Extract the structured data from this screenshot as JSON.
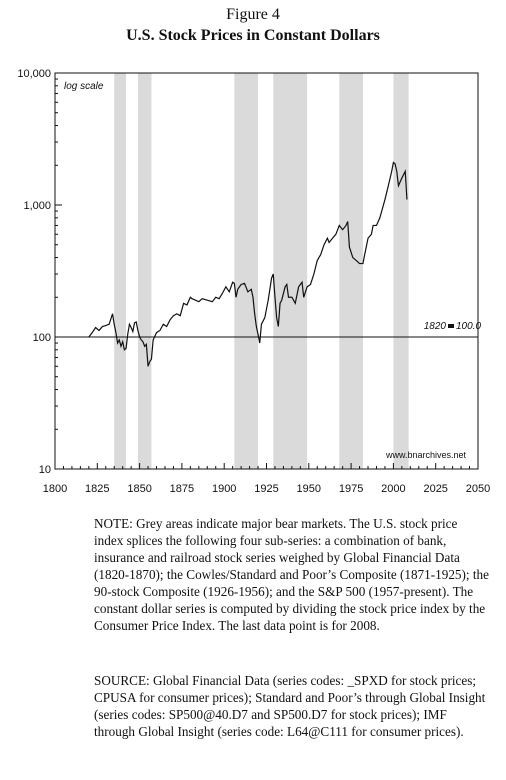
{
  "figure": {
    "label": "Figure 4",
    "title": "U.S. Stock Prices in Constant Dollars"
  },
  "chart_data": {
    "type": "line",
    "yscale": "log",
    "xlim": [
      1800,
      2050
    ],
    "ylim": [
      10,
      10000
    ],
    "xticks": [
      1800,
      1825,
      1850,
      1875,
      1900,
      1925,
      1950,
      1975,
      2000,
      2025,
      2050
    ],
    "yticks": [
      {
        "value": 10,
        "label": "10"
      },
      {
        "value": 100,
        "label": "100"
      },
      {
        "value": 1000,
        "label": "1,000"
      },
      {
        "value": 10000,
        "label": "10,000"
      }
    ],
    "grid": false,
    "scale_note": "log scale",
    "baseline": {
      "value": 100,
      "label": "1820 = 100.0"
    },
    "source_label": "www.bnarchives.net",
    "bear_markets": [
      [
        1835,
        1842
      ],
      [
        1849,
        1857
      ],
      [
        1906,
        1920
      ],
      [
        1929,
        1949
      ],
      [
        1968,
        1982
      ],
      [
        2000,
        2009
      ]
    ],
    "series": [
      {
        "x": [
          1820,
          1822,
          1824,
          1826,
          1828,
          1830,
          1832,
          1834,
          1835,
          1836,
          1837,
          1838,
          1839,
          1840,
          1841,
          1842,
          1843,
          1844,
          1845,
          1846,
          1847,
          1848,
          1849,
          1850,
          1851,
          1852,
          1853,
          1854,
          1855,
          1856,
          1857,
          1858,
          1860,
          1862,
          1864,
          1866,
          1868,
          1870,
          1872,
          1874,
          1876,
          1878,
          1880,
          1881,
          1883,
          1885,
          1887,
          1890,
          1893,
          1895,
          1897,
          1899,
          1901,
          1903,
          1905,
          1906,
          1907,
          1908,
          1910,
          1912,
          1914,
          1916,
          1917,
          1918,
          1919,
          1920,
          1921,
          1922,
          1924,
          1926,
          1928,
          1929,
          1930,
          1931,
          1932,
          1933,
          1934,
          1936,
          1937,
          1938,
          1940,
          1942,
          1944,
          1946,
          1947,
          1949,
          1951,
          1953,
          1955,
          1956,
          1957,
          1959,
          1961,
          1962,
          1964,
          1966,
          1968,
          1970,
          1972,
          1973,
          1974,
          1976,
          1978,
          1980,
          1982,
          1983,
          1985,
          1987,
          1988,
          1990,
          1992,
          1995,
          1997,
          1999,
          2000,
          2001,
          2002,
          2003,
          2005,
          2007,
          2008
        ],
        "values": [
          100,
          108,
          118,
          112,
          120,
          122,
          125,
          150,
          125,
          108,
          90,
          95,
          85,
          92,
          80,
          82,
          105,
          125,
          118,
          110,
          128,
          130,
          112,
          100,
          95,
          92,
          85,
          88,
          60,
          65,
          68,
          95,
          108,
          112,
          125,
          120,
          135,
          145,
          150,
          145,
          180,
          175,
          200,
          195,
          190,
          185,
          195,
          190,
          185,
          200,
          195,
          215,
          240,
          220,
          260,
          255,
          200,
          230,
          250,
          255,
          220,
          230,
          200,
          150,
          120,
          105,
          90,
          125,
          140,
          190,
          280,
          300,
          200,
          140,
          120,
          180,
          190,
          240,
          250,
          200,
          200,
          180,
          240,
          260,
          200,
          240,
          250,
          300,
          380,
          400,
          420,
          500,
          560,
          520,
          560,
          600,
          700,
          650,
          700,
          750,
          480,
          400,
          380,
          360,
          360,
          420,
          560,
          600,
          700,
          700,
          800,
          1100,
          1400,
          1800,
          2100,
          2050,
          1800,
          1400,
          1600,
          1800,
          1100
        ]
      }
    ]
  },
  "notes": {
    "note": "NOTE: Grey areas indicate major bear markets. The U.S. stock price index splices the following four sub-series: a combination of bank, insurance and railroad stock series weighed by Global Financial Data (1820-1870); the Cowles/Standard and Poor’s Composite (1871-1925); the 90-stock Composite (1926-1956); and the S&P 500 (1957-present). The constant dollar series is computed by dividing the stock price index by the Consumer Price Index. The last data point is for 2008.",
    "source": "SOURCE: Global Financial Data (series codes: _SPXD for stock prices; CPUSA for consumer prices); Standard and Poor’s through Global Insight (series codes: SP500@40.D7 and SP500.D7 for stock prices); IMF through Global Insight (series code: L64@C111 for consumer prices)."
  },
  "colors": {
    "bear_band": "#dadada",
    "line": "#111111",
    "frame": "#111111"
  }
}
